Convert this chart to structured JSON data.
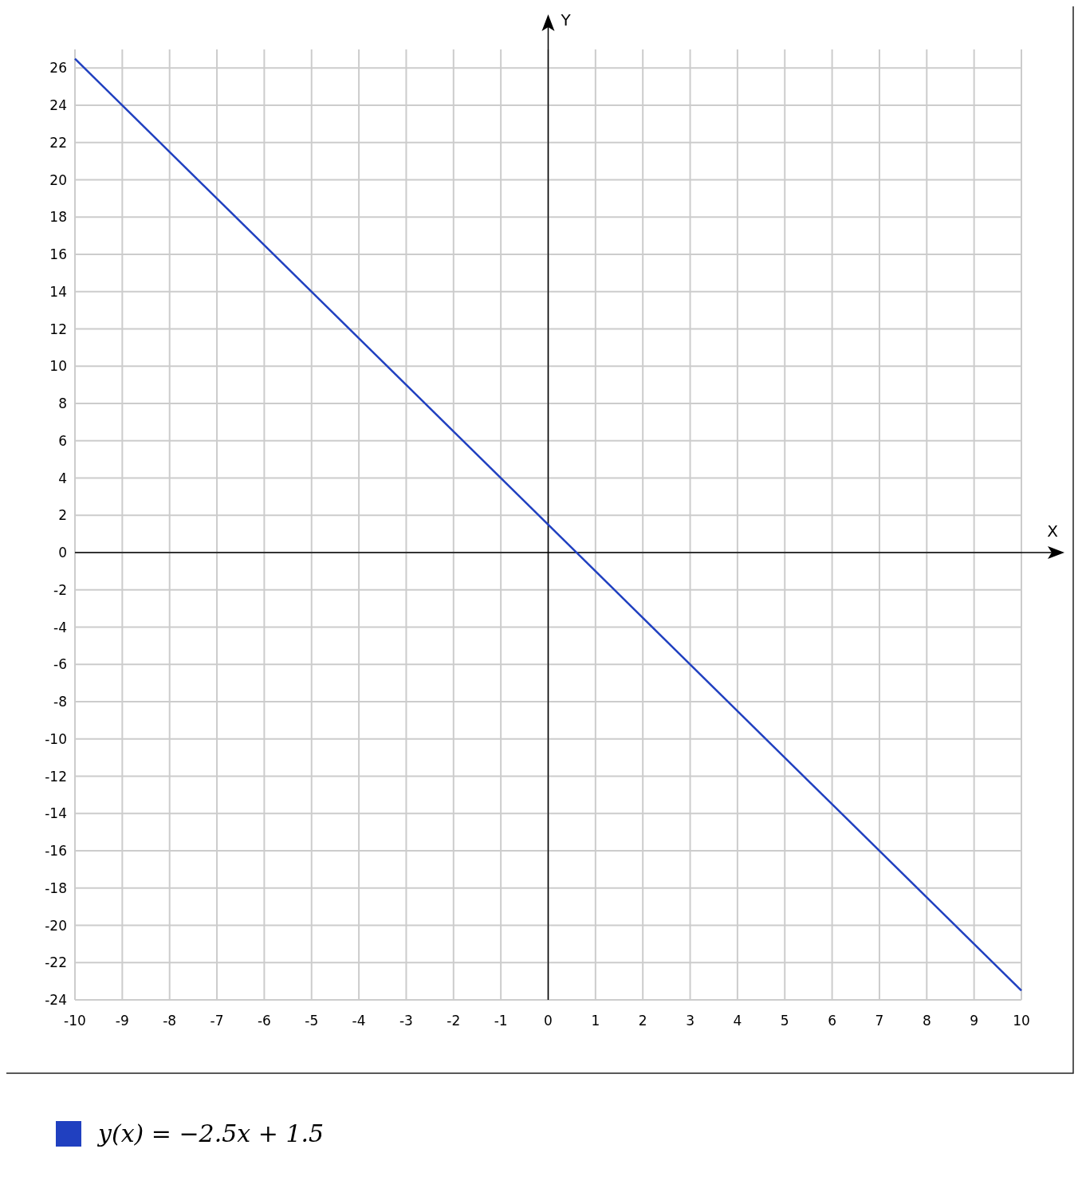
{
  "chart_data": {
    "type": "line",
    "xlabel": "X",
    "ylabel": "Y",
    "x": [
      -10,
      10
    ],
    "series": [
      {
        "name": "y(x) = −2.5x + 1.5",
        "color": "#2040c0",
        "values": [
          26.5,
          -23.5
        ]
      }
    ],
    "xlim": [
      -10,
      10
    ],
    "ylim": [
      -24,
      27
    ],
    "xticks": [
      -10,
      -9,
      -8,
      -7,
      -6,
      -5,
      -4,
      -3,
      -2,
      -1,
      0,
      1,
      2,
      3,
      4,
      5,
      6,
      7,
      8,
      9,
      10
    ],
    "yticks": [
      -24,
      -22,
      -20,
      -18,
      -16,
      -14,
      -12,
      -10,
      -8,
      -6,
      -4,
      -2,
      0,
      2,
      4,
      6,
      8,
      10,
      12,
      14,
      16,
      18,
      20,
      22,
      24,
      26
    ],
    "grid": true,
    "legend": "bottom",
    "marker": "none",
    "line_style": "solid"
  }
}
